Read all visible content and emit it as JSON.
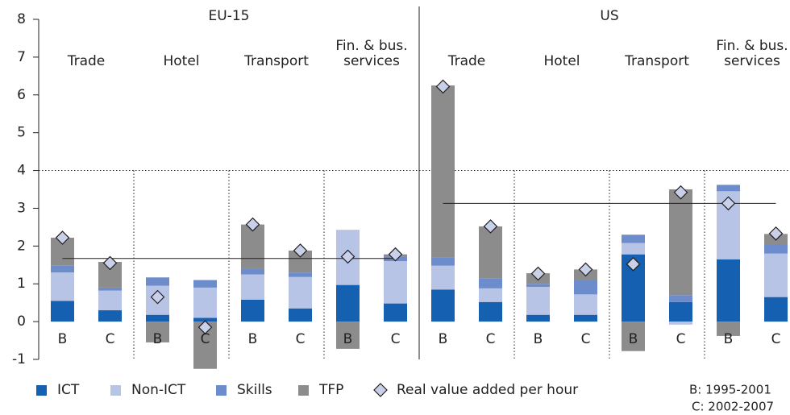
{
  "chart_data": {
    "type": "stacked_bar",
    "groups": [
      {
        "name": "EU-15",
        "sectors": [
          [
            "Trade"
          ],
          [
            "Hotel"
          ],
          [
            "Transport"
          ],
          [
            "Fin. & bus.",
            "services"
          ]
        ]
      },
      {
        "name": "US",
        "sectors": [
          [
            "Trade"
          ],
          [
            "Hotel"
          ],
          [
            "Transport"
          ],
          [
            "Fin. & bus.",
            "services"
          ]
        ]
      }
    ],
    "categories": [
      "B",
      "C",
      "B",
      "C",
      "B",
      "C",
      "B",
      "C",
      "B",
      "C",
      "B",
      "C",
      "B",
      "C",
      "B",
      "C"
    ],
    "series": [
      {
        "name": "ICT",
        "color": "#1560b0",
        "values": [
          0.55,
          0.3,
          0.18,
          0.1,
          0.58,
          0.35,
          0.97,
          0.48,
          0.85,
          0.52,
          0.18,
          0.18,
          1.78,
          0.52,
          1.65,
          0.65
        ]
      },
      {
        "name": "Non-ICT",
        "color": "#b8c4e6",
        "values": [
          0.75,
          0.52,
          0.77,
          0.8,
          0.67,
          0.83,
          1.46,
          1.12,
          0.63,
          0.36,
          0.74,
          0.54,
          0.3,
          -0.08,
          1.8,
          1.15
        ]
      },
      {
        "name": "Skills",
        "color": "#6d8ccc",
        "values": [
          0.18,
          0.08,
          0.22,
          0.2,
          0.15,
          0.12,
          0,
          0.12,
          0.22,
          0.27,
          0.08,
          0.38,
          0.22,
          0.18,
          0.17,
          0.25
        ]
      },
      {
        "name": "TFP",
        "color": "#8c8c8c",
        "values": [
          0.74,
          0.68,
          -0.55,
          -1.25,
          1.17,
          0.58,
          -0.72,
          0.06,
          4.55,
          1.37,
          0.28,
          0.28,
          -0.78,
          2.8,
          -0.38,
          0.27
        ]
      }
    ],
    "markers": {
      "name": "Real value added per hour",
      "color": "#c8d0ea",
      "values": [
        2.22,
        1.55,
        0.65,
        -0.15,
        2.57,
        1.88,
        1.72,
        1.78,
        6.22,
        2.52,
        1.27,
        1.38,
        1.52,
        3.42,
        3.13,
        2.33
      ]
    },
    "average_lines": [
      1.67,
      3.13
    ],
    "dotted_line": 4,
    "ylim": [
      -1,
      8
    ],
    "yticks": [
      -1,
      0,
      1,
      2,
      3,
      4,
      5,
      6,
      7,
      8
    ],
    "notes": [
      "B: 1995-2001",
      "C: 2002-2007"
    ]
  }
}
